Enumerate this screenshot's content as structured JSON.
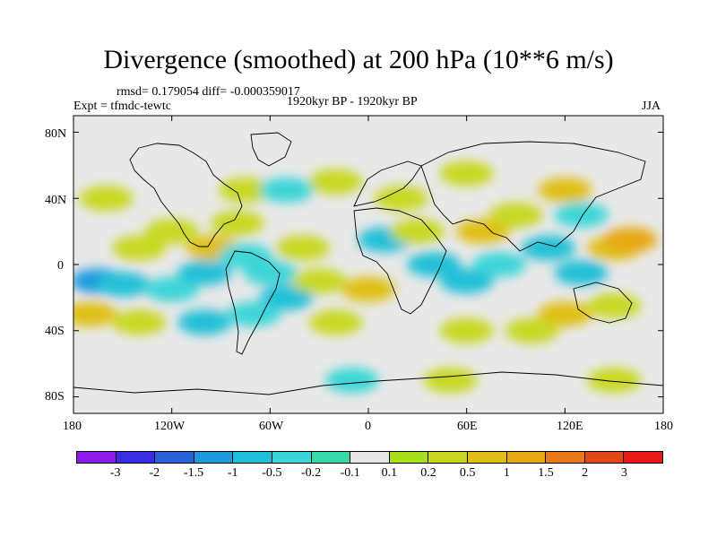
{
  "title": "Divergence (smoothed) at 200 hPa (10**6 m/s)",
  "stats": "rmsd= 0.179054 diff= -0.000359017",
  "expt": "Expt = tfmdc-tewtc",
  "period": "1920kyr BP - 1920kyr BP",
  "season": "JJA",
  "y_ticks": [
    "80N",
    "40N",
    "0",
    "40S",
    "80S"
  ],
  "x_ticks": [
    "180",
    "120W",
    "60W",
    "0",
    "60E",
    "120E",
    "180"
  ],
  "colorbar": {
    "colors": [
      "#8b1be6",
      "#3a2de0",
      "#2a63d8",
      "#1f9ae0",
      "#22c0d8",
      "#3cd6d8",
      "#38d9a8",
      "#e8e8e8",
      "#a8e020",
      "#c8d820",
      "#e0c018",
      "#e8a818",
      "#e87818",
      "#e04818",
      "#e81818"
    ],
    "labels": [
      "-3",
      "-2",
      "-1.5",
      "-1",
      "-0.5",
      "-0.2",
      "-0.1",
      "0.1",
      "0.2",
      "0.5",
      "1",
      "1.5",
      "2",
      "3"
    ]
  },
  "fields": [
    {
      "lon": -165,
      "lat": -10,
      "cls": 3
    },
    {
      "lon": -150,
      "lat": -12,
      "cls": 4
    },
    {
      "lon": -170,
      "lat": -30,
      "cls": 10
    },
    {
      "lon": -140,
      "lat": -35,
      "cls": 9
    },
    {
      "lon": -120,
      "lat": -15,
      "cls": 5
    },
    {
      "lon": -100,
      "lat": -5,
      "cls": 4
    },
    {
      "lon": -95,
      "lat": 10,
      "cls": 10
    },
    {
      "lon": -120,
      "lat": 20,
      "cls": 9
    },
    {
      "lon": -140,
      "lat": 10,
      "cls": 9
    },
    {
      "lon": -80,
      "lat": 25,
      "cls": 9
    },
    {
      "lon": -75,
      "lat": 5,
      "cls": 5
    },
    {
      "lon": -60,
      "lat": -5,
      "cls": 5
    },
    {
      "lon": -50,
      "lat": -20,
      "cls": 4
    },
    {
      "lon": -70,
      "lat": -30,
      "cls": 5
    },
    {
      "lon": -100,
      "lat": -35,
      "cls": 4
    },
    {
      "lon": -40,
      "lat": 10,
      "cls": 9
    },
    {
      "lon": -30,
      "lat": -10,
      "cls": 9
    },
    {
      "lon": -20,
      "lat": -35,
      "cls": 9
    },
    {
      "lon": 0,
      "lat": -15,
      "cls": 10
    },
    {
      "lon": 10,
      "lat": 15,
      "cls": 4
    },
    {
      "lon": 30,
      "lat": 20,
      "cls": 9
    },
    {
      "lon": 40,
      "lat": 0,
      "cls": 4
    },
    {
      "lon": 60,
      "lat": -10,
      "cls": 4
    },
    {
      "lon": 80,
      "lat": 0,
      "cls": 5
    },
    {
      "lon": 70,
      "lat": 20,
      "cls": 10
    },
    {
      "lon": 90,
      "lat": 30,
      "cls": 9
    },
    {
      "lon": 110,
      "lat": 10,
      "cls": 4
    },
    {
      "lon": 130,
      "lat": -5,
      "cls": 4
    },
    {
      "lon": 150,
      "lat": 10,
      "cls": 10
    },
    {
      "lon": 160,
      "lat": 15,
      "cls": 11
    },
    {
      "lon": 150,
      "lat": -25,
      "cls": 9
    },
    {
      "lon": 120,
      "lat": -30,
      "cls": 10
    },
    {
      "lon": 100,
      "lat": -40,
      "cls": 9
    },
    {
      "lon": 60,
      "lat": -40,
      "cls": 9
    },
    {
      "lon": 20,
      "lat": 40,
      "cls": 9
    },
    {
      "lon": -20,
      "lat": 50,
      "cls": 9
    },
    {
      "lon": -75,
      "lat": 45,
      "cls": 9
    },
    {
      "lon": 120,
      "lat": 45,
      "cls": 10
    },
    {
      "lon": 60,
      "lat": 55,
      "cls": 9
    },
    {
      "lon": -50,
      "lat": 45,
      "cls": 5
    },
    {
      "lon": 50,
      "lat": -70,
      "cls": 9
    },
    {
      "lon": 150,
      "lat": -70,
      "cls": 9
    },
    {
      "lon": -10,
      "lat": -70,
      "cls": 5
    },
    {
      "lon": 130,
      "lat": 30,
      "cls": 5
    },
    {
      "lon": -160,
      "lat": 40,
      "cls": 9
    }
  ]
}
